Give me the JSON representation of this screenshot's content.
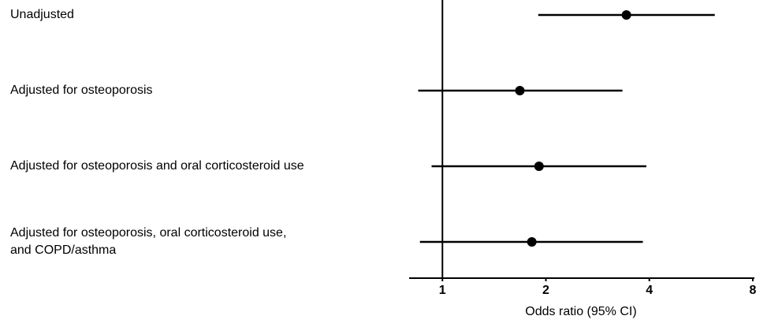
{
  "chart_data": {
    "type": "forest",
    "categories": [
      [
        "Unadjusted"
      ],
      [
        "Adjusted for osteoporosis"
      ],
      [
        "Adjusted for osteoporosis and oral corticosteroid use"
      ],
      [
        "Adjusted for osteoporosis, oral corticosteroid use,",
        "and COPD/asthma"
      ]
    ],
    "values": [
      3.43,
      1.68,
      1.91,
      1.82
    ],
    "lower": [
      1.9,
      0.85,
      0.93,
      0.86
    ],
    "upper": [
      6.2,
      3.34,
      3.92,
      3.83
    ],
    "color": "#000000",
    "xlabel": "Odds ratio (95% CI)",
    "xscale": "log",
    "xlim": [
      0.8,
      8
    ],
    "xticks": [
      1,
      2,
      4,
      8
    ],
    "reference": 1
  }
}
